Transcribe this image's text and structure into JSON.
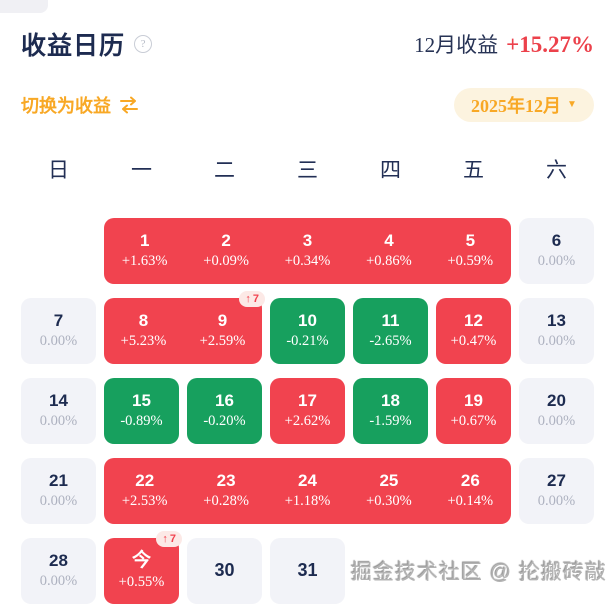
{
  "header": {
    "title": "收益日历",
    "help_glyph": "?",
    "month_return_label": "12月收益",
    "month_return_value": "+15.27%"
  },
  "toolbar": {
    "switch_label": "切换为收益",
    "swap_icon": "swap-arrows",
    "month_selector": "2025年12月",
    "caret_glyph": "▼"
  },
  "calendar": {
    "weekdays": [
      "日",
      "一",
      "二",
      "三",
      "四",
      "五",
      "六"
    ],
    "badge_arrow": "↑",
    "weeks": [
      {
        "items": [
          {
            "kind": "empty"
          },
          {
            "kind": "block",
            "type": "up",
            "badge": null,
            "cells": [
              {
                "day": "1",
                "value": "+1.63%"
              },
              {
                "day": "2",
                "value": "+0.09%"
              },
              {
                "day": "3",
                "value": "+0.34%"
              },
              {
                "day": "4",
                "value": "+0.86%"
              },
              {
                "day": "5",
                "value": "+0.59%"
              }
            ]
          },
          {
            "kind": "cell",
            "type": "flat",
            "day": "6",
            "value": "0.00%"
          }
        ]
      },
      {
        "items": [
          {
            "kind": "cell",
            "type": "flat",
            "day": "7",
            "value": "0.00%"
          },
          {
            "kind": "block",
            "type": "up",
            "badge": "7",
            "cells": [
              {
                "day": "8",
                "value": "+5.23%"
              },
              {
                "day": "9",
                "value": "+2.59%"
              }
            ]
          },
          {
            "kind": "cell",
            "type": "down",
            "day": "10",
            "value": "-0.21%"
          },
          {
            "kind": "cell",
            "type": "down",
            "day": "11",
            "value": "-2.65%"
          },
          {
            "kind": "cell",
            "type": "up",
            "day": "12",
            "value": "+0.47%"
          },
          {
            "kind": "cell",
            "type": "flat",
            "day": "13",
            "value": "0.00%"
          }
        ]
      },
      {
        "items": [
          {
            "kind": "cell",
            "type": "flat",
            "day": "14",
            "value": "0.00%"
          },
          {
            "kind": "cell",
            "type": "down",
            "day": "15",
            "value": "-0.89%"
          },
          {
            "kind": "cell",
            "type": "down",
            "day": "16",
            "value": "-0.20%"
          },
          {
            "kind": "cell",
            "type": "up",
            "day": "17",
            "value": "+2.62%"
          },
          {
            "kind": "cell",
            "type": "down",
            "day": "18",
            "value": "-1.59%"
          },
          {
            "kind": "cell",
            "type": "up",
            "day": "19",
            "value": "+0.67%"
          },
          {
            "kind": "cell",
            "type": "flat",
            "day": "20",
            "value": "0.00%"
          }
        ]
      },
      {
        "items": [
          {
            "kind": "cell",
            "type": "flat",
            "day": "21",
            "value": "0.00%"
          },
          {
            "kind": "block",
            "type": "up",
            "badge": null,
            "cells": [
              {
                "day": "22",
                "value": "+2.53%"
              },
              {
                "day": "23",
                "value": "+0.28%"
              },
              {
                "day": "24",
                "value": "+1.18%"
              },
              {
                "day": "25",
                "value": "+0.30%"
              },
              {
                "day": "26",
                "value": "+0.14%"
              }
            ]
          },
          {
            "kind": "cell",
            "type": "flat",
            "day": "27",
            "value": "0.00%"
          }
        ]
      },
      {
        "items": [
          {
            "kind": "cell",
            "type": "flat",
            "day": "28",
            "value": "0.00%"
          },
          {
            "kind": "cell",
            "type": "up",
            "day": "今",
            "today": true,
            "value": "+0.55%",
            "badge": "7"
          },
          {
            "kind": "cell",
            "type": "plain",
            "day": "30",
            "value": null
          },
          {
            "kind": "cell",
            "type": "plain",
            "day": "31",
            "value": null
          },
          {
            "kind": "empty"
          },
          {
            "kind": "empty"
          },
          {
            "kind": "empty"
          }
        ]
      }
    ]
  },
  "watermark": "掘金技术社区 @ 抡搬砖敲",
  "colors": {
    "up": "#f1434f",
    "down": "#17a05e",
    "flat_bg": "#f2f3f8",
    "navy_text": "#1d2b50",
    "muted_text": "#aeb2c0",
    "orange": "#f8a825",
    "selector_bg": "#fcf3df",
    "badge_bg": "#fce9e6",
    "return_red": "#ec414b"
  }
}
